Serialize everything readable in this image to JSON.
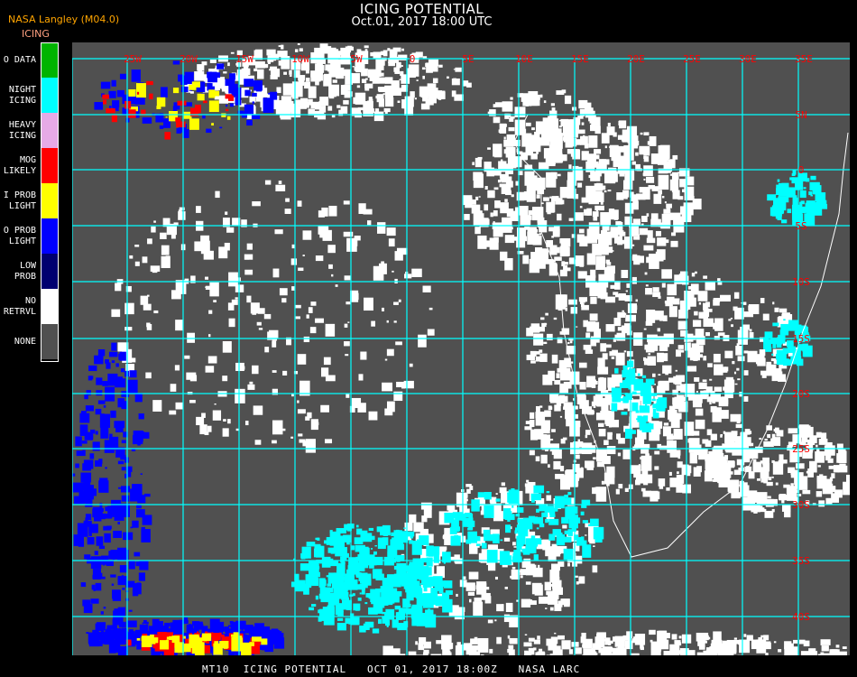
{
  "header": {
    "title": "ICING POTENTIAL",
    "subtitle": "Oct.01, 2017 18:00 UTC",
    "organization": "NASA Langley (M04.0)",
    "product": "ICING"
  },
  "legend": {
    "items": [
      {
        "label_1": "O DATA",
        "label_2": "",
        "color": "#00b400"
      },
      {
        "label_1": "NIGHT",
        "label_2": "ICING",
        "color": "#00ffff"
      },
      {
        "label_1": "HEAVY",
        "label_2": "ICING",
        "color": "#e6aae6"
      },
      {
        "label_1": "MOG",
        "label_2": "LIKELY",
        "color": "#ff0000"
      },
      {
        "label_1": "I PROB",
        "label_2": "LIGHT",
        "color": "#ffff00"
      },
      {
        "label_1": "O PROB",
        "label_2": "LIGHT",
        "color": "#0000ff"
      },
      {
        "label_1": "LOW",
        "label_2": "PROB",
        "color": "#000070"
      },
      {
        "label_1": "NO",
        "label_2": "RETRVL",
        "color": "#ffffff"
      },
      {
        "label_1": "NONE",
        "label_2": "",
        "color": "#505050"
      }
    ]
  },
  "map": {
    "background_color": "#505050",
    "grid_color": "#00ffff",
    "label_color": "#ff0000",
    "longitude_labels": [
      "25W",
      "20W",
      "15W",
      "10W",
      "5W",
      "0",
      "5E",
      "10E",
      "15E",
      "20E",
      "25E",
      "30E",
      "35E"
    ],
    "latitude_labels": [
      "5N",
      "0",
      "5S",
      "10S",
      "15S",
      "20S",
      "25S",
      "30S",
      "35S",
      "40S"
    ]
  },
  "footer": {
    "text": "MT10  ICING POTENTIAL   OCT 01, 2017 18:00Z   NASA LARC"
  }
}
